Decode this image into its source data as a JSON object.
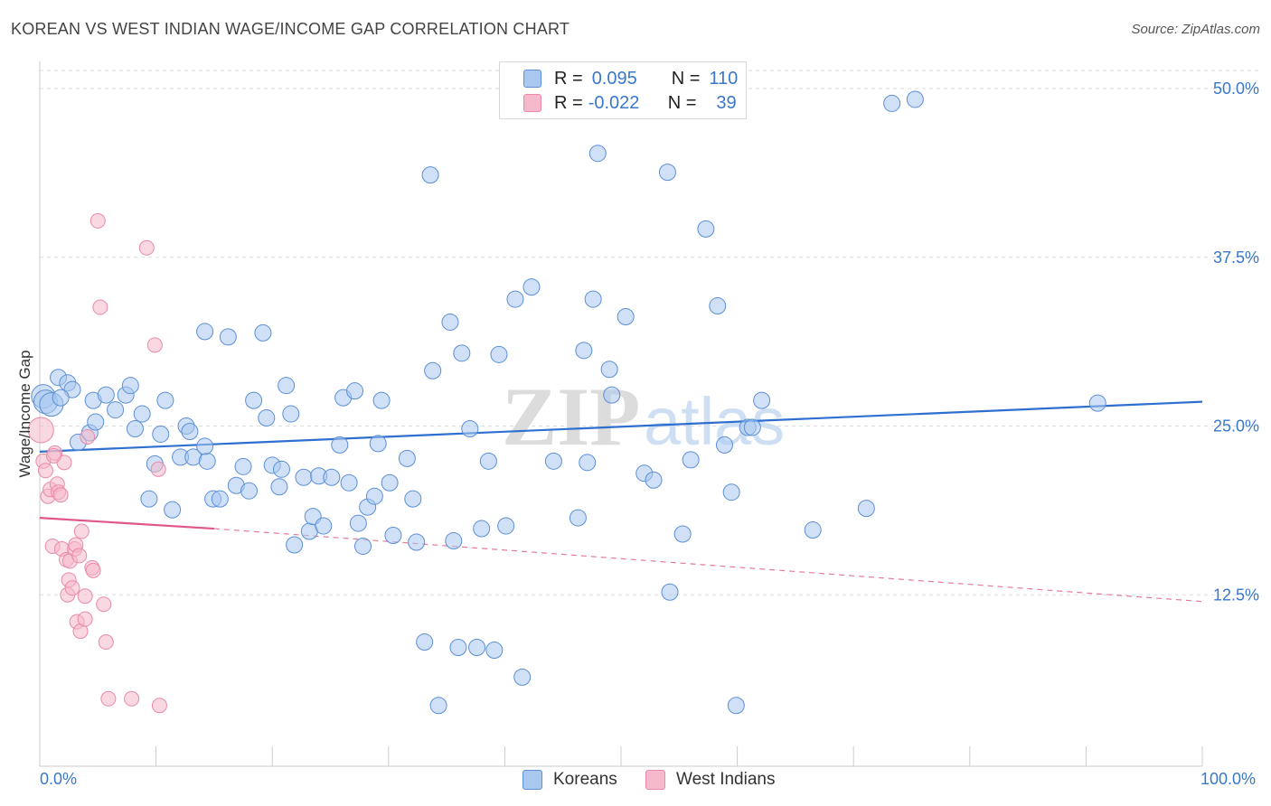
{
  "title": "KOREAN VS WEST INDIAN WAGE/INCOME GAP CORRELATION CHART",
  "source": "Source: ZipAtlas.com",
  "watermark": {
    "zip": "ZIP",
    "atlas": "atlas"
  },
  "legend": {
    "rows": [
      {
        "r_label": "R =",
        "r_value": "0.095",
        "n_label": "N =",
        "n_value": "110",
        "color": "#a9c8f0"
      },
      {
        "r_label": "R =",
        "r_value": "-0.022",
        "n_label": "N =",
        "n_value": "39",
        "color": "#f6b8cb"
      }
    ]
  },
  "bottom_legend": {
    "koreans": "Koreans",
    "west_indians": "West Indians"
  },
  "colors": {
    "koreans_fill": "#a9c8f0",
    "koreans_stroke": "#5b8fd6",
    "koreans_line": "#2f6fcf",
    "westindians_fill": "#f6b8cb",
    "westindians_stroke": "#e88aa8",
    "westindians_line": "#e0578a",
    "axis_label": "#3a78c9",
    "grid": "#dddddd"
  },
  "chart_data": {
    "type": "scatter",
    "title": "KOREAN VS WEST INDIAN WAGE/INCOME GAP CORRELATION CHART",
    "xlabel": "",
    "ylabel": "Wage/Income Gap",
    "xlim": [
      0,
      100
    ],
    "ylim": [
      0,
      50
    ],
    "x_tick_labels": [
      "0.0%",
      "100.0%"
    ],
    "y_ticks": [
      12.5,
      25.0,
      37.5,
      50.0
    ],
    "y_tick_labels": [
      "12.5%",
      "25.0%",
      "37.5%",
      "50.0%"
    ],
    "grid": true,
    "legend_position": "top-center",
    "series": [
      {
        "name": "Koreans",
        "r": 0.095,
        "n": 110,
        "trend": {
          "x": [
            0,
            100
          ],
          "y": [
            23.1,
            26.8
          ]
        },
        "points": [
          [
            0.3,
            27.2
          ],
          [
            0.5,
            26.8
          ],
          [
            1.0,
            26.6
          ],
          [
            1.6,
            28.6
          ],
          [
            2.4,
            28.2
          ],
          [
            2.8,
            27.7
          ],
          [
            1.8,
            27.1
          ],
          [
            3.3,
            23.8
          ],
          [
            4.3,
            24.5
          ],
          [
            4.6,
            26.9
          ],
          [
            4.8,
            25.3
          ],
          [
            5.7,
            27.3
          ],
          [
            6.5,
            26.2
          ],
          [
            7.4,
            27.3
          ],
          [
            7.8,
            28.0
          ],
          [
            8.2,
            24.8
          ],
          [
            8.8,
            25.9
          ],
          [
            9.4,
            19.6
          ],
          [
            9.9,
            22.2
          ],
          [
            10.4,
            24.4
          ],
          [
            10.8,
            26.9
          ],
          [
            11.4,
            18.8
          ],
          [
            12.1,
            22.7
          ],
          [
            12.6,
            25.0
          ],
          [
            12.9,
            24.6
          ],
          [
            13.2,
            22.7
          ],
          [
            14.4,
            22.4
          ],
          [
            14.2,
            23.5
          ],
          [
            14.9,
            19.6
          ],
          [
            15.5,
            19.6
          ],
          [
            14.2,
            32.0
          ],
          [
            16.2,
            31.6
          ],
          [
            16.9,
            20.6
          ],
          [
            17.5,
            22.0
          ],
          [
            18.0,
            20.2
          ],
          [
            18.4,
            26.9
          ],
          [
            19.2,
            31.9
          ],
          [
            19.5,
            25.6
          ],
          [
            20.0,
            22.1
          ],
          [
            20.6,
            20.5
          ],
          [
            20.8,
            21.8
          ],
          [
            21.2,
            28.0
          ],
          [
            21.6,
            25.9
          ],
          [
            21.9,
            16.2
          ],
          [
            22.7,
            21.2
          ],
          [
            23.2,
            17.2
          ],
          [
            23.5,
            18.3
          ],
          [
            24.0,
            21.3
          ],
          [
            24.4,
            17.6
          ],
          [
            25.1,
            21.2
          ],
          [
            25.8,
            23.6
          ],
          [
            26.1,
            27.1
          ],
          [
            26.6,
            20.8
          ],
          [
            27.1,
            27.6
          ],
          [
            27.4,
            17.8
          ],
          [
            27.8,
            16.1
          ],
          [
            28.2,
            19.0
          ],
          [
            28.8,
            19.8
          ],
          [
            29.1,
            23.7
          ],
          [
            29.4,
            26.9
          ],
          [
            30.1,
            20.8
          ],
          [
            30.4,
            16.9
          ],
          [
            31.6,
            22.6
          ],
          [
            32.1,
            19.6
          ],
          [
            32.4,
            16.4
          ],
          [
            33.1,
            9.0
          ],
          [
            33.6,
            43.6
          ],
          [
            33.8,
            29.1
          ],
          [
            34.3,
            4.3
          ],
          [
            35.3,
            32.7
          ],
          [
            35.6,
            16.5
          ],
          [
            36.0,
            8.6
          ],
          [
            36.3,
            30.4
          ],
          [
            37.0,
            24.8
          ],
          [
            37.6,
            8.6
          ],
          [
            38.0,
            17.4
          ],
          [
            38.6,
            22.4
          ],
          [
            39.1,
            8.4
          ],
          [
            39.5,
            30.3
          ],
          [
            40.1,
            17.6
          ],
          [
            40.9,
            34.4
          ],
          [
            41.5,
            6.4
          ],
          [
            42.3,
            35.3
          ],
          [
            44.2,
            22.4
          ],
          [
            46.3,
            18.2
          ],
          [
            46.8,
            30.6
          ],
          [
            47.1,
            22.3
          ],
          [
            47.6,
            34.4
          ],
          [
            48.0,
            45.2
          ],
          [
            49.0,
            29.2
          ],
          [
            49.2,
            27.3
          ],
          [
            50.4,
            33.1
          ],
          [
            52.0,
            21.5
          ],
          [
            52.8,
            21.0
          ],
          [
            54.0,
            43.8
          ],
          [
            54.2,
            12.7
          ],
          [
            55.3,
            17.0
          ],
          [
            56.0,
            22.5
          ],
          [
            57.3,
            39.6
          ],
          [
            58.3,
            33.9
          ],
          [
            58.9,
            23.6
          ],
          [
            59.5,
            20.1
          ],
          [
            59.9,
            4.3
          ],
          [
            60.9,
            24.9
          ],
          [
            61.3,
            24.9
          ],
          [
            62.1,
            26.9
          ],
          [
            66.5,
            17.3
          ],
          [
            71.1,
            18.9
          ],
          [
            73.3,
            48.9
          ],
          [
            75.3,
            49.2
          ],
          [
            91.0,
            26.7
          ]
        ]
      },
      {
        "name": "West Indians",
        "r": -0.022,
        "n": 39,
        "trend": {
          "x": [
            0,
            15,
            100
          ],
          "y": [
            18.2,
            17.4,
            12.0
          ]
        },
        "points": [
          [
            0.1,
            24.7
          ],
          [
            0.3,
            22.4
          ],
          [
            0.5,
            21.7
          ],
          [
            0.7,
            19.8
          ],
          [
            0.9,
            20.3
          ],
          [
            1.1,
            16.1
          ],
          [
            1.3,
            23.0
          ],
          [
            1.5,
            20.7
          ],
          [
            1.6,
            20.1
          ],
          [
            1.8,
            19.9
          ],
          [
            1.9,
            15.9
          ],
          [
            2.1,
            22.3
          ],
          [
            2.3,
            15.1
          ],
          [
            2.4,
            12.5
          ],
          [
            2.5,
            13.6
          ],
          [
            2.6,
            15.0
          ],
          [
            2.8,
            13.0
          ],
          [
            3.0,
            15.9
          ],
          [
            3.1,
            16.2
          ],
          [
            3.2,
            10.5
          ],
          [
            3.4,
            15.4
          ],
          [
            3.5,
            9.8
          ],
          [
            3.6,
            17.2
          ],
          [
            3.9,
            10.7
          ],
          [
            3.9,
            12.4
          ],
          [
            4.1,
            24.2
          ],
          [
            4.5,
            14.5
          ],
          [
            4.6,
            14.3
          ],
          [
            5.0,
            40.2
          ],
          [
            5.2,
            33.8
          ],
          [
            5.5,
            11.8
          ],
          [
            5.7,
            9.0
          ],
          [
            5.9,
            4.8
          ],
          [
            7.9,
            4.8
          ],
          [
            9.2,
            38.2
          ],
          [
            9.9,
            31.0
          ],
          [
            10.2,
            21.8
          ],
          [
            10.3,
            4.3
          ],
          [
            1.2,
            22.8
          ]
        ]
      }
    ]
  }
}
